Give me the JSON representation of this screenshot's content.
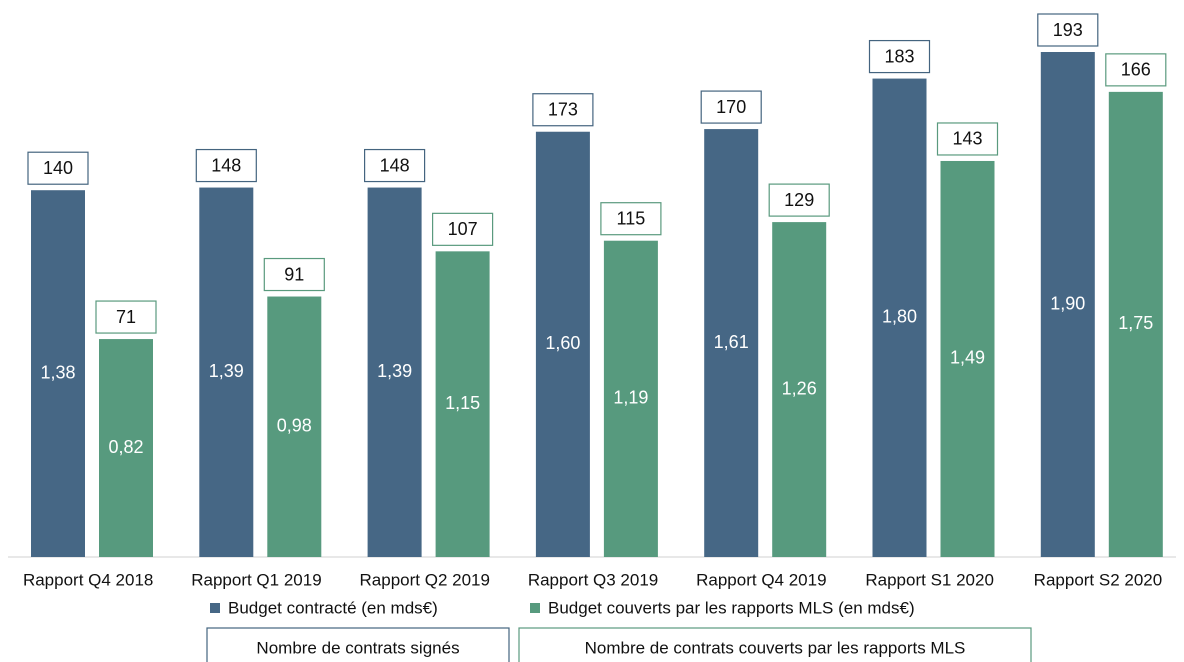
{
  "chart_data": {
    "type": "bar",
    "categories": [
      "Rapport Q4 2018",
      "Rapport Q1 2019",
      "Rapport Q2 2019",
      "Rapport Q3 2019",
      "Rapport Q4 2019",
      "Rapport S1 2020",
      "Rapport S2 2020"
    ],
    "series": [
      {
        "name": "Budget contracté (en mds€)",
        "color": "#466785",
        "values": [
          1.38,
          1.39,
          1.39,
          1.6,
          1.61,
          1.8,
          1.9
        ],
        "value_labels": [
          "1,38",
          "1,39",
          "1,39",
          "1,60",
          "1,61",
          "1,80",
          "1,90"
        ],
        "count_name": "Nombre de contrats signés",
        "counts": [
          140,
          148,
          148,
          173,
          170,
          183,
          193
        ]
      },
      {
        "name": "Budget couverts par les rapports MLS (en mds€)",
        "color": "#579a7e",
        "values": [
          0.82,
          0.98,
          1.15,
          1.19,
          1.26,
          1.49,
          1.75
        ],
        "value_labels": [
          "0,82",
          "0,98",
          "1,15",
          "1,19",
          "1,26",
          "1,49",
          "1,75"
        ],
        "count_name": "Nombre de contrats couverts par les rapports MLS",
        "counts": [
          71,
          91,
          107,
          115,
          129,
          143,
          166
        ]
      }
    ]
  }
}
